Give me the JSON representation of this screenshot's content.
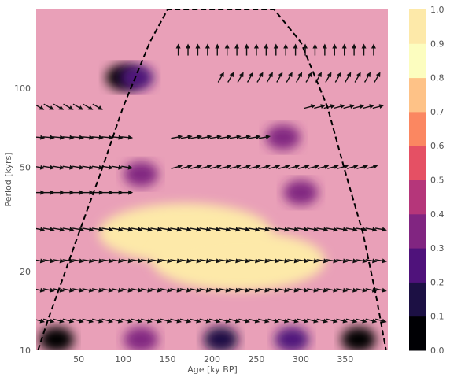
{
  "chart_data": {
    "type": "heatmap",
    "subtype": "wavelet coherence with phase arrows",
    "title": "",
    "xlabel": "Age [ky BP]",
    "ylabel": "Period [kyrs]",
    "xlim": [
      2,
      398
    ],
    "ylim": [
      10,
      200
    ],
    "y_scale": "log",
    "x_ticks": [
      50,
      100,
      150,
      200,
      250,
      300,
      350
    ],
    "y_ticks": [
      10,
      20,
      50,
      100
    ],
    "grid": false,
    "colormap": "magma",
    "colorbar": {
      "ticks": [
        0.0,
        0.1,
        0.2,
        0.3,
        0.4,
        0.5,
        0.6,
        0.7,
        0.8,
        0.9,
        1.0
      ],
      "colors": [
        "#000004",
        "#1c1044",
        "#4f127b",
        "#812581",
        "#b5367a",
        "#e55064",
        "#fb8761",
        "#fec287",
        "#fcfdbf",
        "#fde9a9"
      ]
    },
    "colors": {
      "background": "#e9a0b8",
      "coi_line": "#000000",
      "arrow": "#111111",
      "tick_text": "#555555"
    },
    "cone_of_influence": {
      "x": [
        4,
        15,
        30,
        50,
        75,
        100,
        130,
        150,
        170,
        200,
        230,
        250,
        270,
        300,
        330,
        350,
        370,
        385,
        396
      ],
      "period": [
        10,
        13,
        18,
        28,
        48,
        85,
        150,
        200,
        200,
        200,
        200,
        200,
        200,
        150,
        85,
        48,
        28,
        16,
        10
      ]
    },
    "coherence_regions": [
      {
        "x": 100,
        "period": 110,
        "value": 0.05
      },
      {
        "x": 115,
        "period": 110,
        "value": 0.2
      },
      {
        "x": 280,
        "period": 65,
        "value": 0.35
      },
      {
        "x": 120,
        "period": 47,
        "value": 0.3
      },
      {
        "x": 300,
        "period": 40,
        "value": 0.35
      },
      {
        "x": 25,
        "period": 11,
        "value": 0.05
      },
      {
        "x": 120,
        "period": 11,
        "value": 0.3
      },
      {
        "x": 210,
        "period": 11,
        "value": 0.1
      },
      {
        "x": 290,
        "period": 11,
        "value": 0.2
      },
      {
        "x": 365,
        "period": 11,
        "value": 0.05
      },
      {
        "x": 170,
        "period": 28,
        "value": 0.95
      },
      {
        "x": 230,
        "period": 22,
        "value": 0.95
      }
    ],
    "phase_arrow_rows": [
      {
        "period": 140,
        "x_from": 162,
        "x_to": 390,
        "angle_deg": -90
      },
      {
        "period": 110,
        "x_from": 210,
        "x_to": 390,
        "angle_deg": -60
      },
      {
        "period": 85,
        "x_from": 5,
        "x_to": 80,
        "angle_deg": 30
      },
      {
        "period": 85,
        "x_from": 310,
        "x_to": 390,
        "angle_deg": -15
      },
      {
        "period": 65,
        "x_from": 5,
        "x_to": 110,
        "angle_deg": 5
      },
      {
        "period": 65,
        "x_from": 160,
        "x_to": 260,
        "angle_deg": -10
      },
      {
        "period": 50,
        "x_from": 5,
        "x_to": 110,
        "angle_deg": 10
      },
      {
        "period": 50,
        "x_from": 160,
        "x_to": 390,
        "angle_deg": -15
      },
      {
        "period": 40,
        "x_from": 5,
        "x_to": 110,
        "angle_deg": 0
      },
      {
        "period": 29,
        "x_from": 5,
        "x_to": 390,
        "angle_deg": 10
      },
      {
        "period": 22,
        "x_from": 5,
        "x_to": 390,
        "angle_deg": 10
      },
      {
        "period": 17,
        "x_from": 5,
        "x_to": 390,
        "angle_deg": 12
      },
      {
        "period": 13,
        "x_from": 5,
        "x_to": 390,
        "angle_deg": 15
      }
    ]
  }
}
